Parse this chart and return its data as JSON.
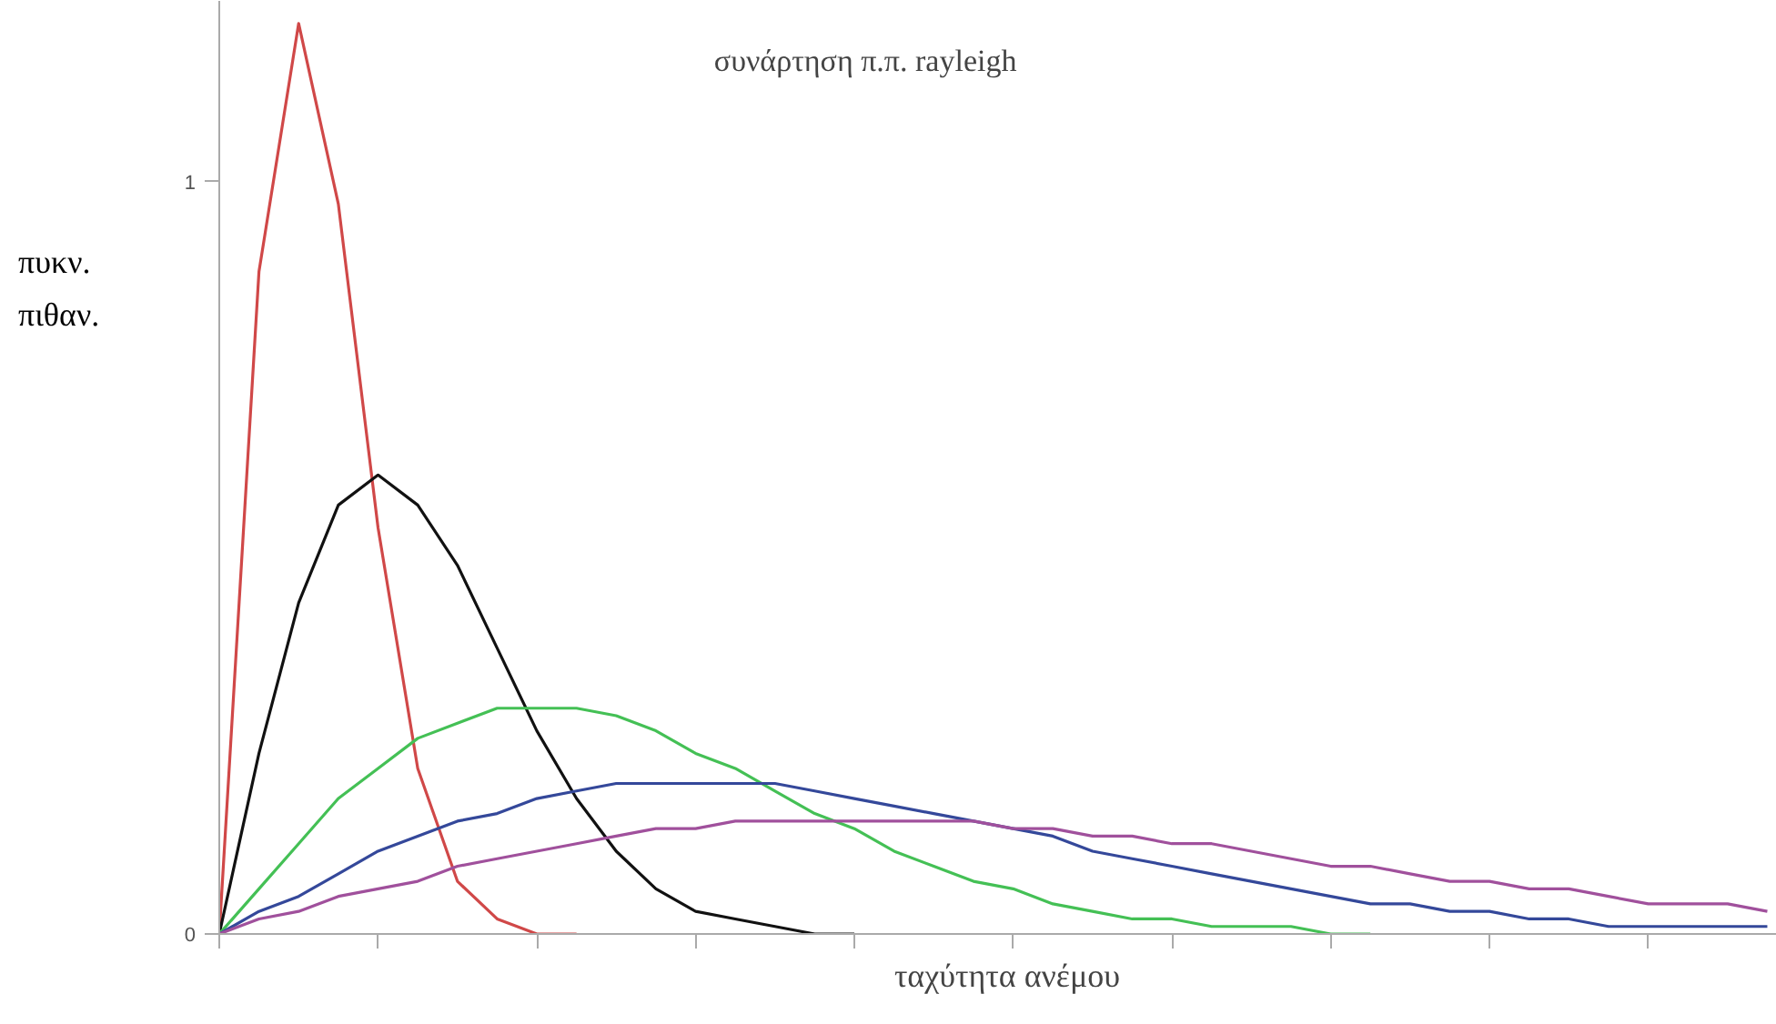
{
  "chart_data": {
    "type": "line",
    "title": "συνάρτηση π.π. rayleigh",
    "xlabel": "ταχύτητα ανέμου",
    "ylabel": "πυκν.\nπιθαν.",
    "categories": [
      null,
      null,
      null,
      null,
      null,
      null,
      null,
      null,
      null,
      null,
      null,
      null,
      null,
      null,
      null,
      null,
      null,
      null,
      null,
      null,
      null,
      null,
      null,
      null,
      null,
      null,
      null,
      null,
      null,
      null,
      null,
      null,
      null,
      null,
      null,
      null,
      null,
      null,
      null,
      null
    ],
    "series": [
      {
        "color": "#d04848",
        "values": [
          0,
          0.88,
          1.21,
          0.97,
          0.54,
          0.22,
          0.07,
          0.02,
          0,
          0,
          null,
          null,
          null,
          null,
          null,
          null,
          null,
          null,
          null,
          null,
          null,
          null,
          null,
          null,
          null,
          null,
          null,
          null,
          null,
          null,
          null,
          null,
          null,
          null,
          null,
          null,
          null,
          null,
          null,
          null
        ]
      },
      {
        "color": "#111111",
        "values": [
          0,
          0.24,
          0.44,
          0.57,
          0.61,
          0.57,
          0.49,
          0.38,
          0.27,
          0.18,
          0.11,
          0.06,
          0.03,
          0.02,
          0.01,
          0,
          0,
          null,
          null,
          null,
          null,
          null,
          null,
          null,
          null,
          null,
          null,
          null,
          null,
          null,
          null,
          null,
          null,
          null,
          null,
          null,
          null,
          null,
          null,
          null
        ]
      },
      {
        "color": "#44c055",
        "values": [
          0,
          0.06,
          0.12,
          0.18,
          0.22,
          0.26,
          0.28,
          0.3,
          0.3,
          0.3,
          0.29,
          0.27,
          0.24,
          0.22,
          0.19,
          0.16,
          0.14,
          0.11,
          0.09,
          0.07,
          0.06,
          0.04,
          0.03,
          0.02,
          0.02,
          0.01,
          0.01,
          0.01,
          0,
          0,
          null,
          null,
          null,
          null,
          null,
          null,
          null,
          null,
          null,
          null
        ]
      },
      {
        "color": "#34489a",
        "values": [
          0,
          0.03,
          0.05,
          0.08,
          0.11,
          0.13,
          0.15,
          0.16,
          0.18,
          0.19,
          0.2,
          0.2,
          0.2,
          0.2,
          0.2,
          0.19,
          0.18,
          0.17,
          0.16,
          0.15,
          0.14,
          0.13,
          0.11,
          0.1,
          0.09,
          0.08,
          0.07,
          0.06,
          0.05,
          0.04,
          0.04,
          0.03,
          0.03,
          0.02,
          0.02,
          0.01,
          0.01,
          0.01,
          0.01,
          0.01
        ]
      },
      {
        "color": "#a0509c",
        "values": [
          0,
          0.02,
          0.03,
          0.05,
          0.06,
          0.07,
          0.09,
          0.1,
          0.11,
          0.12,
          0.13,
          0.14,
          0.14,
          0.15,
          0.15,
          0.15,
          0.15,
          0.15,
          0.15,
          0.15,
          0.14,
          0.14,
          0.13,
          0.13,
          0.12,
          0.12,
          0.11,
          0.1,
          0.09,
          0.09,
          0.08,
          0.07,
          0.07,
          0.06,
          0.06,
          0.05,
          0.04,
          0.04,
          0.04,
          0.03
        ]
      }
    ],
    "ylim": [
      0,
      1.24
    ],
    "yticks": [
      0,
      1
    ],
    "grid": false,
    "marker": "none",
    "line_style": "solid"
  }
}
